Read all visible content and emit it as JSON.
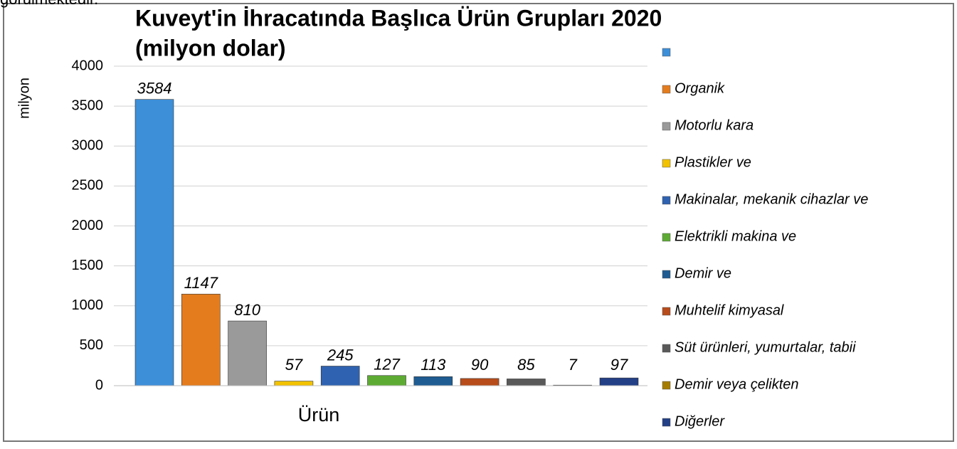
{
  "caption_fragment": "görülmektedir.",
  "chart_data": {
    "type": "bar",
    "title": "Kuveyt'in İhracatında Başlıca Ürün Grupları 2020",
    "subtitle": "(milyon dolar)",
    "y_label": "milyon",
    "x_label": "Ürün",
    "categories": [
      "Ürün"
    ],
    "series": [
      {
        "name": null,
        "color": "#3d8fd8",
        "values": [
          3584
        ]
      },
      {
        "name": "Organik",
        "color": "#e47c1e",
        "values": [
          1147
        ]
      },
      {
        "name": "Motorlu kara",
        "color": "#9a9a9a",
        "values": [
          810
        ]
      },
      {
        "name": "Plastikler ve",
        "color": "#f2c200",
        "values": [
          57
        ]
      },
      {
        "name": "Makinalar, mekanik cihazlar ve",
        "color": "#2f62b0",
        "values": [
          245
        ]
      },
      {
        "name": "Elektrikli makina ve",
        "color": "#5eab34",
        "values": [
          127
        ]
      },
      {
        "name": "Demir ve",
        "color": "#1f5c92",
        "values": [
          113
        ]
      },
      {
        "name": "Muhtelif kimyasal",
        "color": "#b84c1b",
        "values": [
          90
        ]
      },
      {
        "name": "Süt ürünleri, yumurtalar, tabii",
        "color": "#595959",
        "values": [
          85
        ]
      },
      {
        "name": "Demir veya çelikten",
        "color": "#a67c00",
        "values": [
          7
        ]
      },
      {
        "name": "Diğerler",
        "color": "#233f86",
        "values": [
          97
        ]
      }
    ],
    "ylim": [
      0,
      4000
    ],
    "yticks": [
      0,
      500,
      1000,
      1500,
      2000,
      2500,
      3000,
      3500,
      4000
    ],
    "grid": true,
    "legend": "right"
  }
}
